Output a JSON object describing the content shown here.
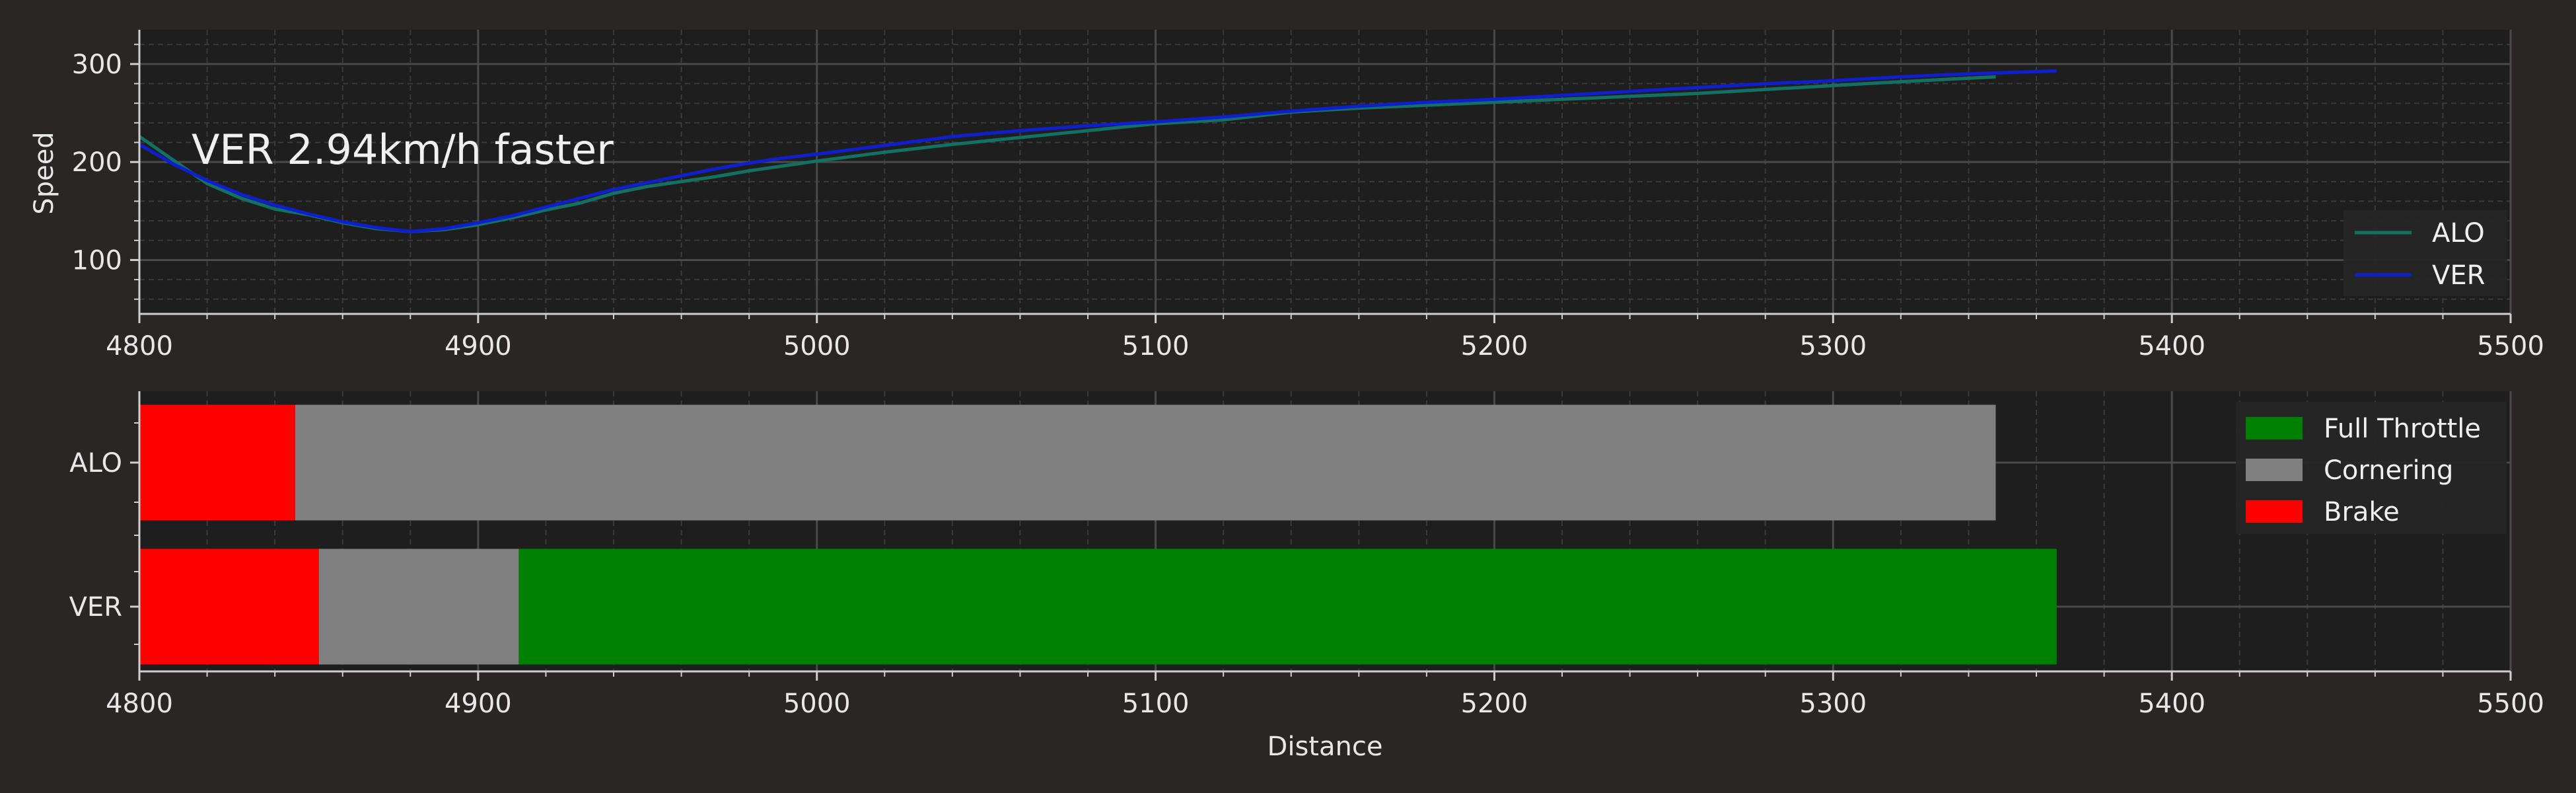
{
  "chart_data": [
    {
      "type": "line",
      "ylabel": "Speed",
      "xlabel": "",
      "xlim": [
        4800,
        5500
      ],
      "ylim": [
        45,
        335
      ],
      "xticks": [
        4800,
        4900,
        5000,
        5100,
        5200,
        5300,
        5400,
        5500
      ],
      "yticks": [
        100,
        200,
        300
      ],
      "grid": true,
      "legend_position": "lower-right",
      "annotation": "VER 2.94km/h faster",
      "series": [
        {
          "name": "ALO",
          "color": "#137163",
          "x": [
            4800,
            4810,
            4820,
            4830,
            4840,
            4850,
            4860,
            4870,
            4880,
            4890,
            4900,
            4910,
            4920,
            4930,
            4940,
            4950,
            4960,
            4970,
            4980,
            4990,
            5000,
            5020,
            5040,
            5060,
            5080,
            5100,
            5120,
            5140,
            5160,
            5180,
            5200,
            5220,
            5240,
            5260,
            5280,
            5300,
            5320,
            5348
          ],
          "y": [
            226,
            202,
            178,
            163,
            152,
            146,
            138,
            132,
            129,
            131,
            136,
            143,
            151,
            158,
            168,
            175,
            180,
            185,
            191,
            196,
            201,
            210,
            218,
            225,
            232,
            239,
            243,
            251,
            255,
            258,
            261,
            264,
            267,
            270,
            274,
            278,
            282,
            287
          ]
        },
        {
          "name": "VER",
          "color": "#0f1fd0",
          "x": [
            4800,
            4810,
            4820,
            4830,
            4840,
            4850,
            4860,
            4870,
            4880,
            4890,
            4900,
            4910,
            4920,
            4930,
            4940,
            4950,
            4960,
            4970,
            4980,
            4990,
            5000,
            5020,
            5040,
            5060,
            5080,
            5100,
            5120,
            5140,
            5160,
            5180,
            5200,
            5220,
            5240,
            5260,
            5280,
            5300,
            5320,
            5340,
            5366
          ],
          "y": [
            218,
            198,
            181,
            167,
            156,
            147,
            139,
            133,
            129,
            132,
            138,
            145,
            154,
            163,
            172,
            179,
            186,
            193,
            199,
            204,
            208,
            217,
            226,
            232,
            237,
            241,
            246,
            252,
            257,
            261,
            264,
            268,
            272,
            276,
            280,
            283,
            287,
            290,
            293
          ]
        }
      ]
    },
    {
      "type": "bar",
      "orientation": "horizontal",
      "stacked": true,
      "xlabel": "Distance",
      "xlim": [
        4800,
        5500
      ],
      "xticks": [
        4800,
        4900,
        5000,
        5100,
        5200,
        5300,
        5400,
        5500
      ],
      "categories": [
        "ALO",
        "VER"
      ],
      "grid": true,
      "legend_position": "upper-right",
      "legend": [
        {
          "name": "Full Throttle",
          "color": "#008000"
        },
        {
          "name": "Cornering",
          "color": "#808080"
        },
        {
          "name": "Brake",
          "color": "#ff0000"
        }
      ],
      "segments": {
        "ALO": [
          {
            "phase": "Brake",
            "start": 4800,
            "end": 4846
          },
          {
            "phase": "Cornering",
            "start": 4846,
            "end": 5348
          }
        ],
        "VER": [
          {
            "phase": "Brake",
            "start": 4800,
            "end": 4853
          },
          {
            "phase": "Cornering",
            "start": 4853,
            "end": 4912
          },
          {
            "phase": "Full Throttle",
            "start": 4912,
            "end": 5366
          }
        ]
      }
    }
  ]
}
